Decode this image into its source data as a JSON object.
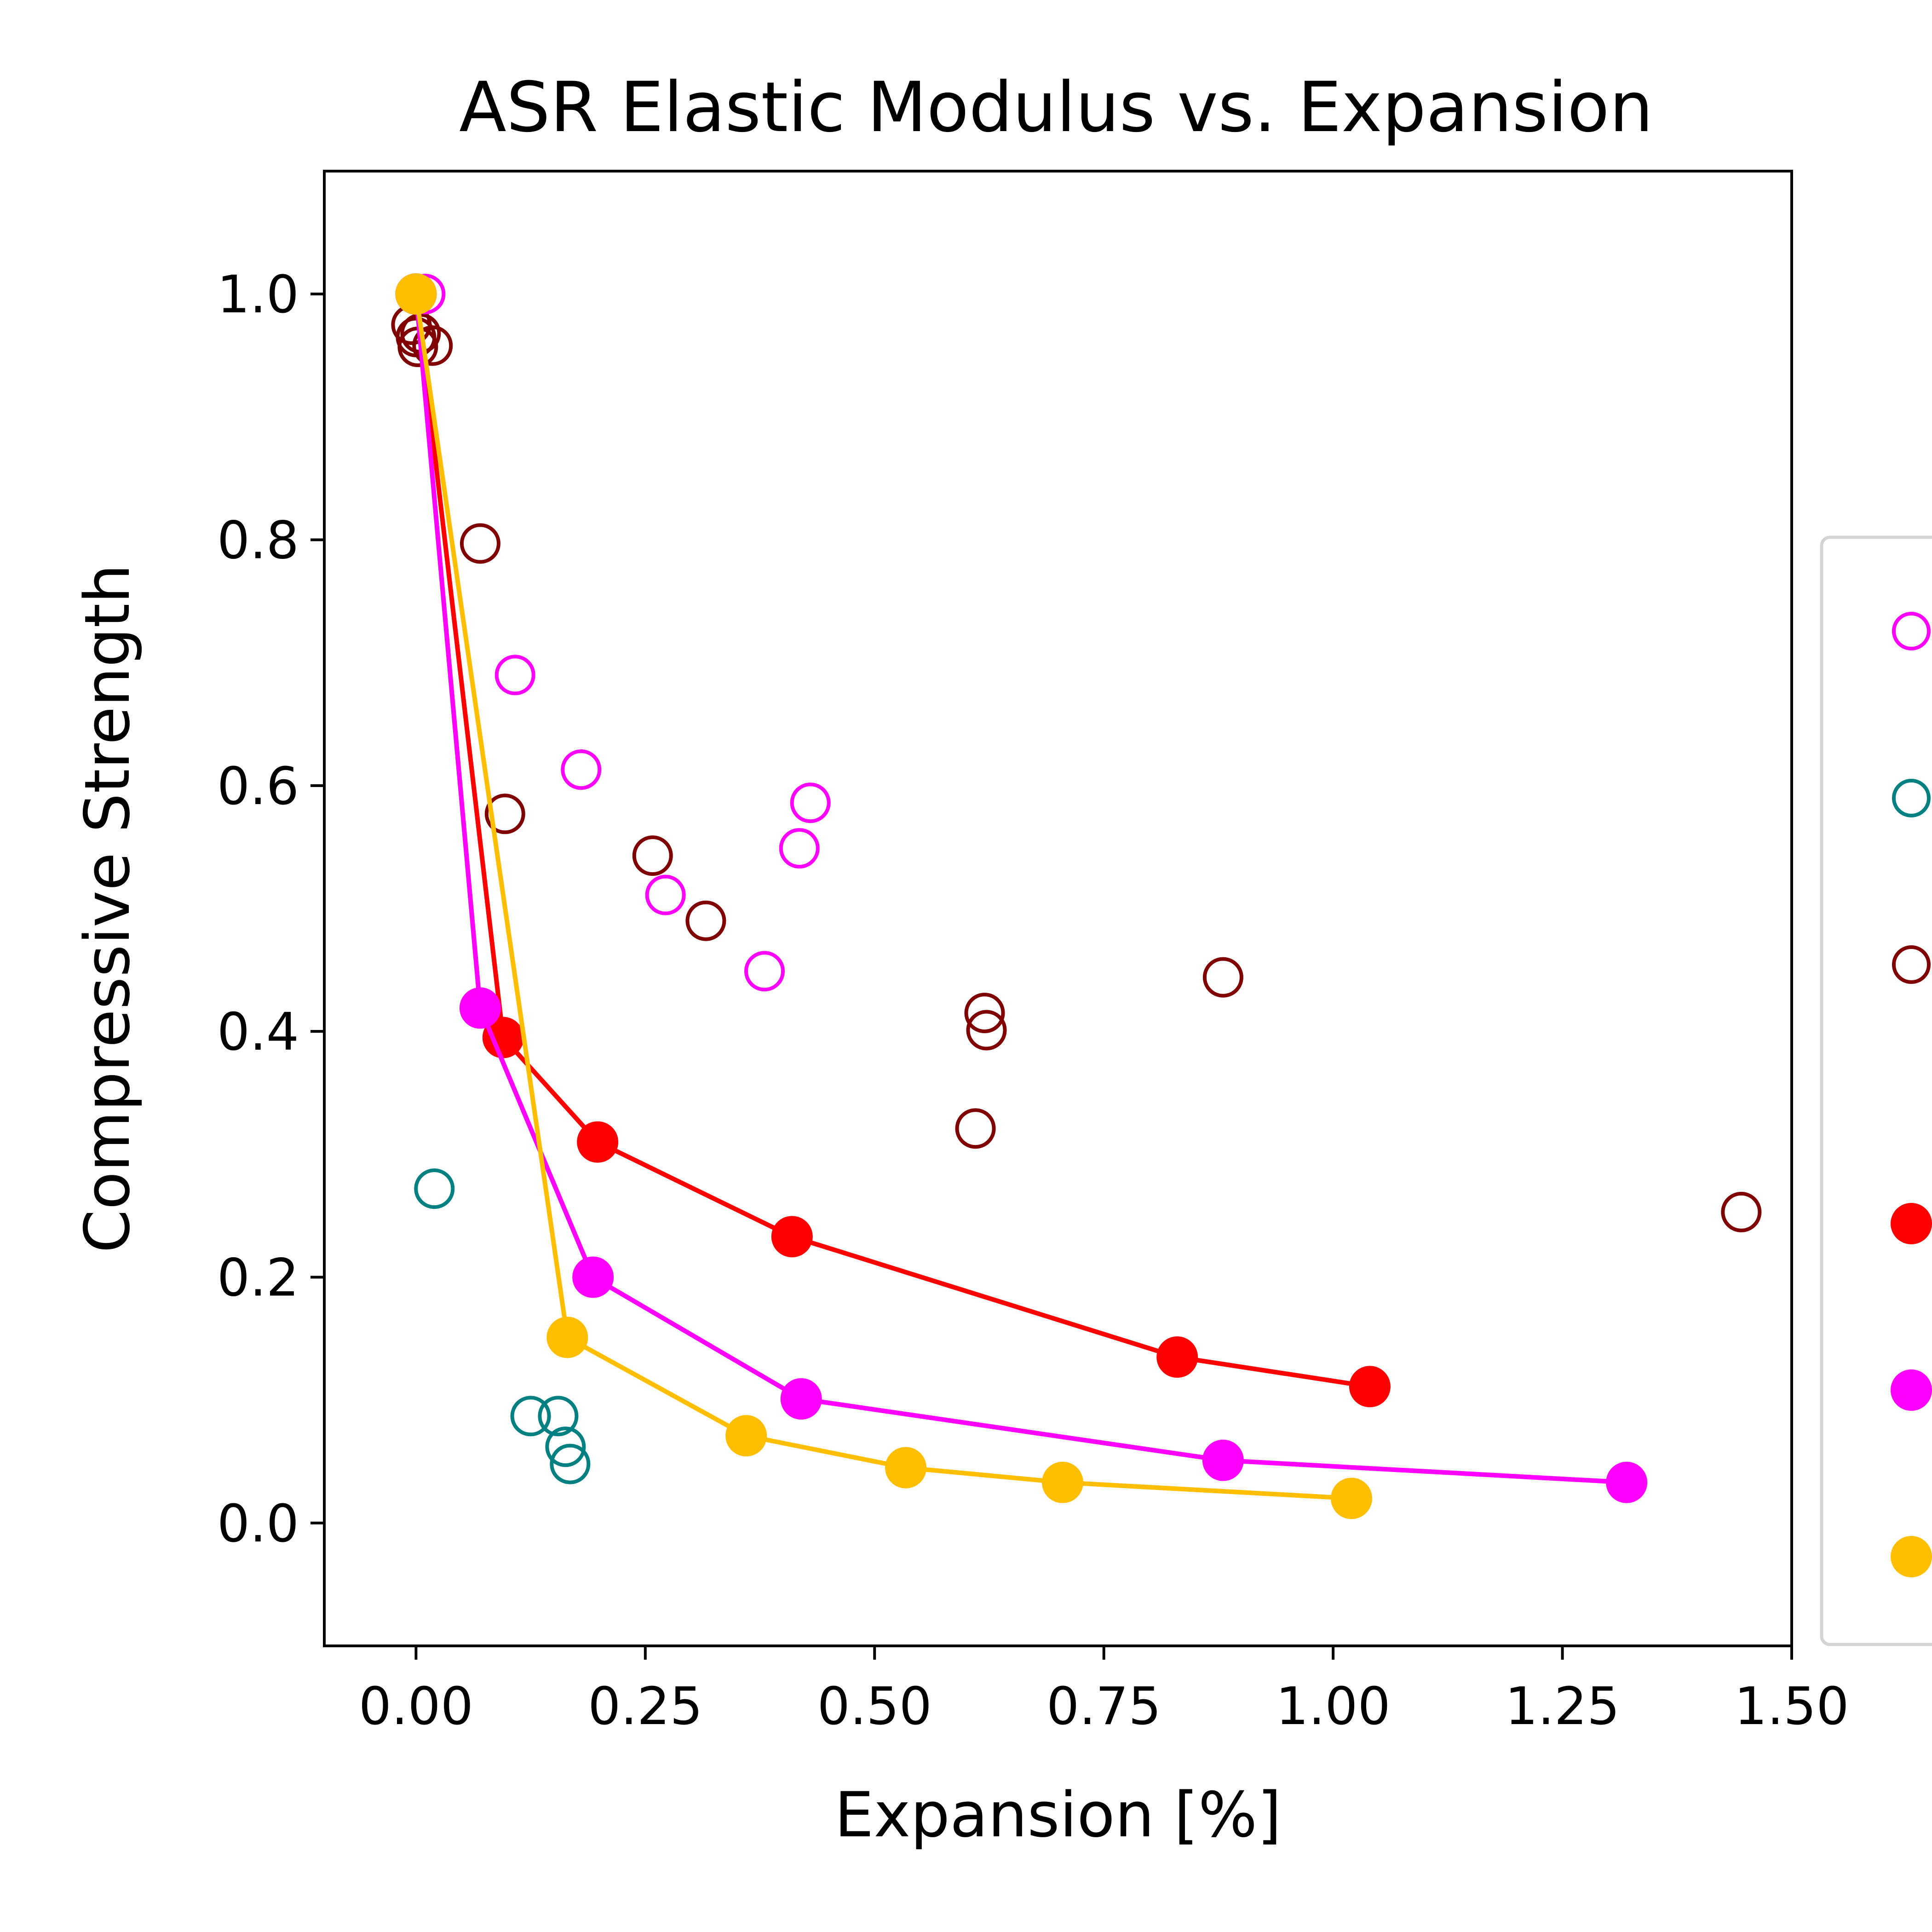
{
  "chart_data": {
    "type": "scatter",
    "title": "ASR Elastic Modulus vs. Expansion",
    "xlabel": "Expansion [%]",
    "ylabel": "Compressive Strength",
    "xlim": [
      -0.1,
      1.5
    ],
    "ylim": [
      -0.1,
      1.1
    ],
    "xticks": [
      "0.00",
      "0.25",
      "0.50",
      "0.75",
      "1.00",
      "1.25",
      "1.50"
    ],
    "yticks": [
      "0.0",
      "0.2",
      "0.4",
      "0.6",
      "0.8",
      "1.0"
    ],
    "grid": false,
    "legend": {
      "placement": "right"
    },
    "series": [
      {
        "style": "open-marker",
        "color": "#ff00ff",
        "points": [
          [
            0.01,
            1.0
          ],
          [
            0.108,
            0.69
          ],
          [
            0.18,
            0.613
          ],
          [
            0.272,
            0.511
          ],
          [
            0.38,
            0.449
          ],
          [
            0.418,
            0.549
          ],
          [
            0.43,
            0.586
          ]
        ]
      },
      {
        "style": "open-marker",
        "color": "#008080",
        "points": [
          [
            0.02,
            0.272
          ],
          [
            0.125,
            0.087
          ],
          [
            0.155,
            0.087
          ],
          [
            0.163,
            0.062
          ],
          [
            0.168,
            0.048
          ]
        ]
      },
      {
        "style": "open-marker",
        "color": "#800000",
        "points": [
          [
            -0.005,
            0.975
          ],
          [
            0.0,
            0.965
          ],
          [
            0.002,
            0.957
          ],
          [
            0.005,
            0.968
          ],
          [
            0.018,
            0.958
          ],
          [
            0.07,
            0.797
          ],
          [
            0.097,
            0.577
          ],
          [
            0.258,
            0.543
          ],
          [
            0.316,
            0.49
          ],
          [
            0.61,
            0.321
          ],
          [
            0.62,
            0.415
          ],
          [
            0.622,
            0.401
          ],
          [
            0.88,
            0.444
          ],
          [
            1.445,
            0.253
          ]
        ]
      },
      {
        "style": "filled-line",
        "color": "#ff0000",
        "points": [
          [
            0.0,
            1.0
          ],
          [
            0.095,
            0.395
          ],
          [
            0.198,
            0.31
          ],
          [
            0.41,
            0.233
          ],
          [
            0.83,
            0.135
          ],
          [
            1.04,
            0.111
          ]
        ]
      },
      {
        "style": "filled-line",
        "color": "#ff00ff",
        "points": [
          [
            0.0,
            1.0
          ],
          [
            0.07,
            0.419
          ],
          [
            0.193,
            0.2
          ],
          [
            0.42,
            0.101
          ],
          [
            0.88,
            0.051
          ],
          [
            1.32,
            0.033
          ]
        ]
      },
      {
        "style": "filled-line",
        "color": "#ffbf00",
        "points": [
          [
            0.0,
            1.0
          ],
          [
            0.165,
            0.151
          ],
          [
            0.36,
            0.071
          ],
          [
            0.534,
            0.045
          ],
          [
            0.705,
            0.033
          ],
          [
            1.02,
            0.02
          ]
        ]
      }
    ]
  }
}
